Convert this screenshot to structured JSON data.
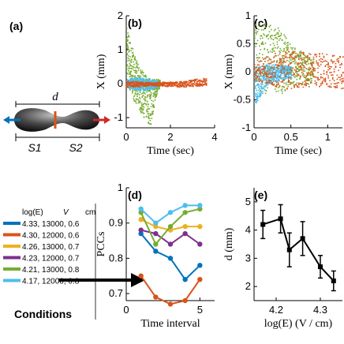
{
  "panel_labels": {
    "a": "(a)",
    "b": "(b)",
    "c": "(c)",
    "d": "(d)",
    "e": "(e)"
  },
  "schematic": {
    "d_label": "d",
    "s1_label": "S1",
    "s2_label": "S2"
  },
  "legend": {
    "header": [
      "log(E)",
      "V",
      "cm"
    ],
    "entries": [
      {
        "label": "4.33, 13000, 0.6",
        "color": "#0072bd"
      },
      {
        "label": "4.30, 12000, 0.6",
        "color": "#d95319"
      },
      {
        "label": "4.26, 13000, 0.7",
        "color": "#edb120"
      },
      {
        "label": "4.23, 12000, 0.7",
        "color": "#7e2f8e"
      },
      {
        "label": "4.21, 13000, 0.8",
        "color": "#77ac30"
      },
      {
        "label": "4.17, 12000, 0.8",
        "color": "#4dbeee"
      }
    ],
    "footer": "Conditions"
  },
  "chart_data": [
    {
      "panel": "b",
      "type": "scatter",
      "xlabel": "Time (sec)",
      "ylabel": "X (mm)",
      "xlim": [
        0,
        4
      ],
      "ylim": [
        -1.3,
        2
      ],
      "xticks": [
        "0",
        "2",
        "4"
      ],
      "yticks": [
        "-1",
        "0",
        "1",
        "2"
      ],
      "series": [
        {
          "color": "#77ac30",
          "envelope": [
            [
              0.0,
              1.8,
              -0.1
            ],
            [
              0.2,
              1.2,
              -0.3
            ],
            [
              0.5,
              0.6,
              -0.7
            ],
            [
              0.8,
              0.3,
              -1.0
            ],
            [
              1.1,
              0.2,
              -1.25
            ],
            [
              1.3,
              0.15,
              -0.4
            ],
            [
              1.5,
              0.15,
              -0.1
            ]
          ]
        },
        {
          "color": "#4dbeee",
          "envelope": [
            [
              0.0,
              0.15,
              -0.1
            ],
            [
              0.6,
              0.2,
              -0.2
            ],
            [
              1.0,
              0.15,
              -0.15
            ],
            [
              1.4,
              0.1,
              -0.1
            ]
          ]
        },
        {
          "color": "#d95319",
          "envelope": [
            [
              0.0,
              0.1,
              -0.1
            ],
            [
              1.0,
              0.05,
              -0.05
            ],
            [
              2.5,
              0.08,
              -0.08
            ],
            [
              3.6,
              0.2,
              -0.05
            ]
          ]
        }
      ]
    },
    {
      "panel": "c",
      "type": "scatter",
      "xlabel": "Time (sec)",
      "ylabel": "X (mm)",
      "xlim": [
        0,
        1.2
      ],
      "ylim": [
        -1,
        1
      ],
      "xticks": [
        "0",
        "0.5",
        "1"
      ],
      "yticks": [
        "-1",
        "-0.5",
        "0",
        "0.5",
        "1"
      ],
      "series": [
        {
          "color": "#77ac30",
          "envelope": [
            [
              0.0,
              0.9,
              -0.3
            ],
            [
              0.3,
              0.85,
              -0.45
            ],
            [
              0.5,
              0.5,
              -0.25
            ],
            [
              0.8,
              0.25,
              -0.2
            ]
          ]
        },
        {
          "color": "#4dbeee",
          "envelope": [
            [
              0.0,
              0.1,
              -0.6
            ],
            [
              0.2,
              0.15,
              -0.2
            ],
            [
              0.5,
              0.1,
              -0.1
            ]
          ]
        },
        {
          "color": "#d95319",
          "envelope": [
            [
              0.0,
              0.2,
              -0.15
            ],
            [
              0.4,
              0.4,
              -0.3
            ],
            [
              0.8,
              0.35,
              -0.25
            ],
            [
              1.2,
              0.3,
              -0.3
            ]
          ]
        }
      ]
    },
    {
      "panel": "d",
      "type": "line",
      "xlabel": "Time interval",
      "ylabel": "PCCs",
      "xlim": [
        0,
        6
      ],
      "ylim": [
        0.68,
        1.0
      ],
      "xticks": [
        "0",
        "5"
      ],
      "yticks": [
        "0.7",
        "0.8",
        "0.9",
        "1"
      ],
      "x": [
        1,
        2,
        3,
        4,
        5
      ],
      "series": [
        {
          "color": "#0072bd",
          "values": [
            0.87,
            0.82,
            0.8,
            0.74,
            0.78
          ]
        },
        {
          "color": "#d95319",
          "values": [
            0.75,
            0.69,
            0.67,
            0.68,
            0.74
          ]
        },
        {
          "color": "#edb120",
          "values": [
            0.91,
            0.89,
            0.88,
            0.89,
            0.89
          ]
        },
        {
          "color": "#7e2f8e",
          "values": [
            0.88,
            0.87,
            0.84,
            0.87,
            0.84
          ]
        },
        {
          "color": "#77ac30",
          "values": [
            0.93,
            0.84,
            0.89,
            0.93,
            0.94
          ]
        },
        {
          "color": "#4dbeee",
          "values": [
            0.94,
            0.9,
            0.93,
            0.95,
            0.95
          ]
        }
      ]
    },
    {
      "panel": "e",
      "type": "line",
      "xlabel": "log(E) (V / cm)",
      "ylabel": "d (mm)",
      "xlim": [
        4.15,
        4.35
      ],
      "ylim": [
        1.5,
        5.5
      ],
      "xticks": [
        "4.2",
        "4.3"
      ],
      "yticks": [
        "2",
        "3",
        "4",
        "5"
      ],
      "x": [
        4.17,
        4.21,
        4.23,
        4.26,
        4.3,
        4.33
      ],
      "values": [
        4.2,
        4.4,
        3.3,
        3.7,
        2.7,
        2.2
      ],
      "errors": [
        0.5,
        0.5,
        0.6,
        0.6,
        0.4,
        0.35
      ]
    }
  ]
}
